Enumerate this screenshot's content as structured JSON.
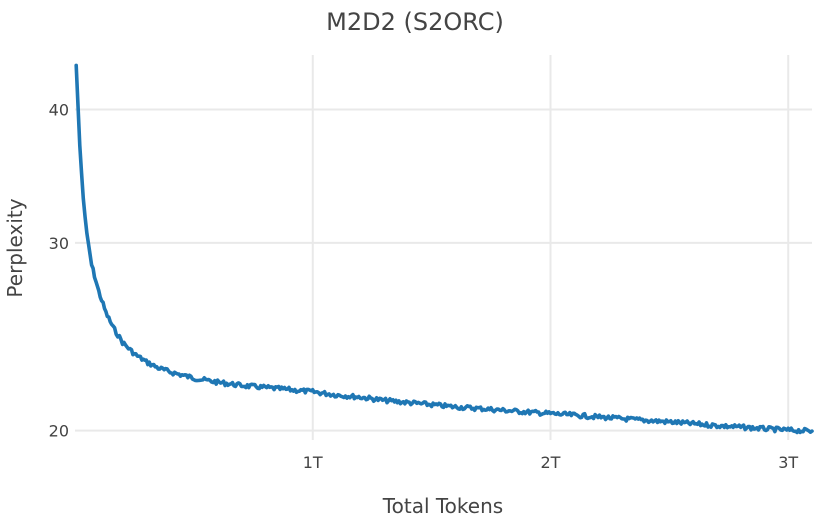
{
  "chart_data": {
    "type": "line",
    "title": "M2D2 (S2ORC)",
    "xlabel": "Total Tokens",
    "ylabel": "Perplexity",
    "y_scale": "log",
    "x_unit": "tokens (trillions)",
    "xlim": [
      0.0,
      3.1
    ],
    "ylim": [
      19.6,
      45
    ],
    "x_ticks": [
      {
        "value": 1,
        "label": "1T"
      },
      {
        "value": 2,
        "label": "2T"
      },
      {
        "value": 3,
        "label": "3T"
      }
    ],
    "y_ticks": [
      {
        "value": 20,
        "label": "20"
      },
      {
        "value": 30,
        "label": "30"
      },
      {
        "value": 40,
        "label": "40"
      }
    ],
    "grid": true,
    "legend": false,
    "series": [
      {
        "color": "#1f77b4",
        "x": [
          0.005,
          0.02,
          0.035,
          0.05,
          0.07,
          0.1,
          0.13,
          0.16,
          0.2,
          0.25,
          0.3,
          0.35,
          0.4,
          0.45,
          0.5,
          0.6,
          0.7,
          0.8,
          0.9,
          1.0,
          1.1,
          1.2,
          1.3,
          1.4,
          1.5,
          1.6,
          1.7,
          1.8,
          1.9,
          2.0,
          2.1,
          2.2,
          2.3,
          2.4,
          2.5,
          2.6,
          2.7,
          2.8,
          2.9,
          3.0,
          3.1
        ],
        "values": [
          44.0,
          37.0,
          33.0,
          30.5,
          28.6,
          27.0,
          25.8,
          25.0,
          24.2,
          23.6,
          23.2,
          22.9,
          22.7,
          22.55,
          22.4,
          22.2,
          22.05,
          21.95,
          21.85,
          21.75,
          21.6,
          21.5,
          21.35,
          21.25,
          21.15,
          21.05,
          20.98,
          20.9,
          20.82,
          20.75,
          20.68,
          20.6,
          20.52,
          20.45,
          20.38,
          20.3,
          20.22,
          20.15,
          20.08,
          20.02,
          19.98
        ]
      }
    ]
  }
}
